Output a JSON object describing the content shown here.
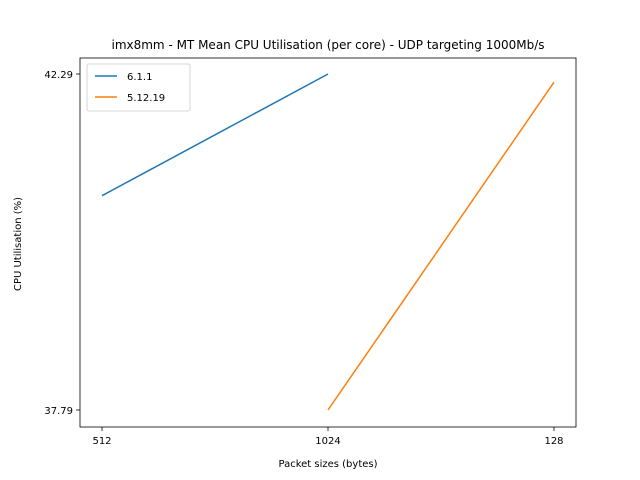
{
  "chart_data": {
    "type": "line",
    "title": "imx8mm - MT Mean CPU Utilisation (per core) - UDP targeting 1000Mb/s",
    "xlabel": "Packet sizes (bytes)",
    "ylabel": "CPU Utilisation (%)",
    "categories": [
      "512",
      "1024",
      "128"
    ],
    "y_ticks": [
      37.79,
      42.29
    ],
    "y_tick_labels": [
      "37.79",
      "42.29"
    ],
    "ylim": [
      37.79,
      42.29
    ],
    "grid": false,
    "legend_position": "top-left",
    "series": [
      {
        "name": "6.1.1",
        "color": "#1f77b4",
        "points": [
          {
            "x": "512",
            "y": 40.66
          },
          {
            "x": "1024",
            "y": 42.29
          }
        ]
      },
      {
        "name": "5.12.19",
        "color": "#ff7f0e",
        "points": [
          {
            "x": "1024",
            "y": 37.79
          },
          {
            "x": "128",
            "y": 42.18
          }
        ]
      }
    ]
  }
}
